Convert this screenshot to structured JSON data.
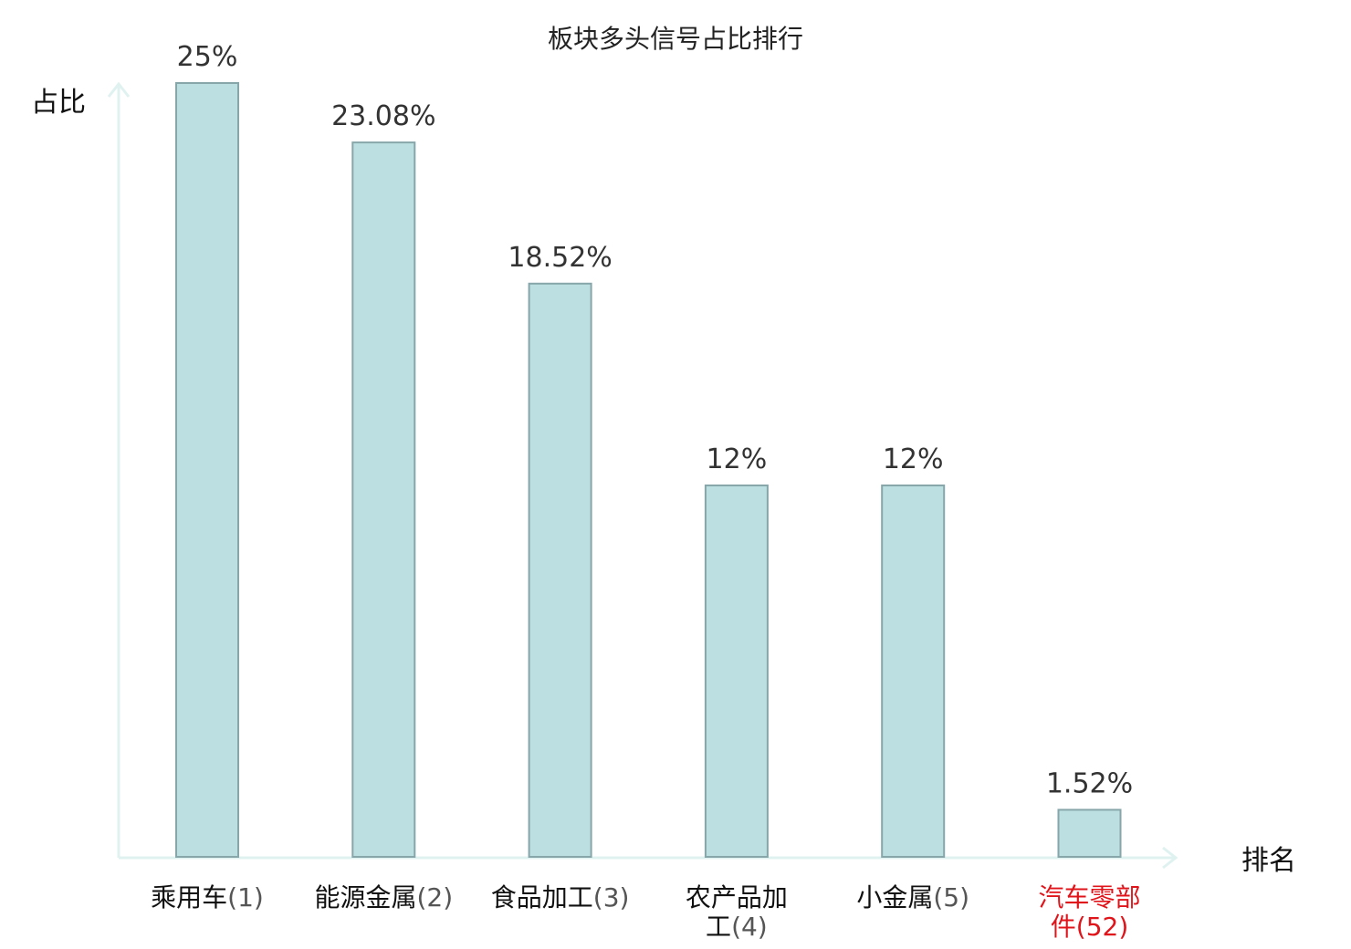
{
  "chart_data": {
    "type": "bar",
    "title": "板块多头信号占比排行",
    "ylabel": "占比",
    "xlabel": "排名",
    "categories": [
      {
        "name": "乘用车",
        "rank": "(1)",
        "highlight": false
      },
      {
        "name": "能源金属",
        "rank": "(2)",
        "highlight": false
      },
      {
        "name": "食品加工",
        "rank": "(3)",
        "highlight": false
      },
      {
        "name": "农产品加工",
        "rank": "(4)",
        "highlight": false
      },
      {
        "name": "小金属",
        "rank": "(5)",
        "highlight": false
      },
      {
        "name": "汽车零部件",
        "rank": "(52)",
        "highlight": true
      }
    ],
    "values": [
      25,
      23.08,
      18.52,
      12,
      12,
      1.52
    ],
    "value_labels": [
      "25%",
      "23.08%",
      "18.52%",
      "12%",
      "12%",
      "1.52%"
    ],
    "ylim": [
      0,
      25
    ],
    "grid": false,
    "colors": {
      "bar_fill": "#bce0e2",
      "bar_stroke": "#86a6a9",
      "axis": "#e0f2f0",
      "highlight_text": "#e0151b"
    }
  }
}
